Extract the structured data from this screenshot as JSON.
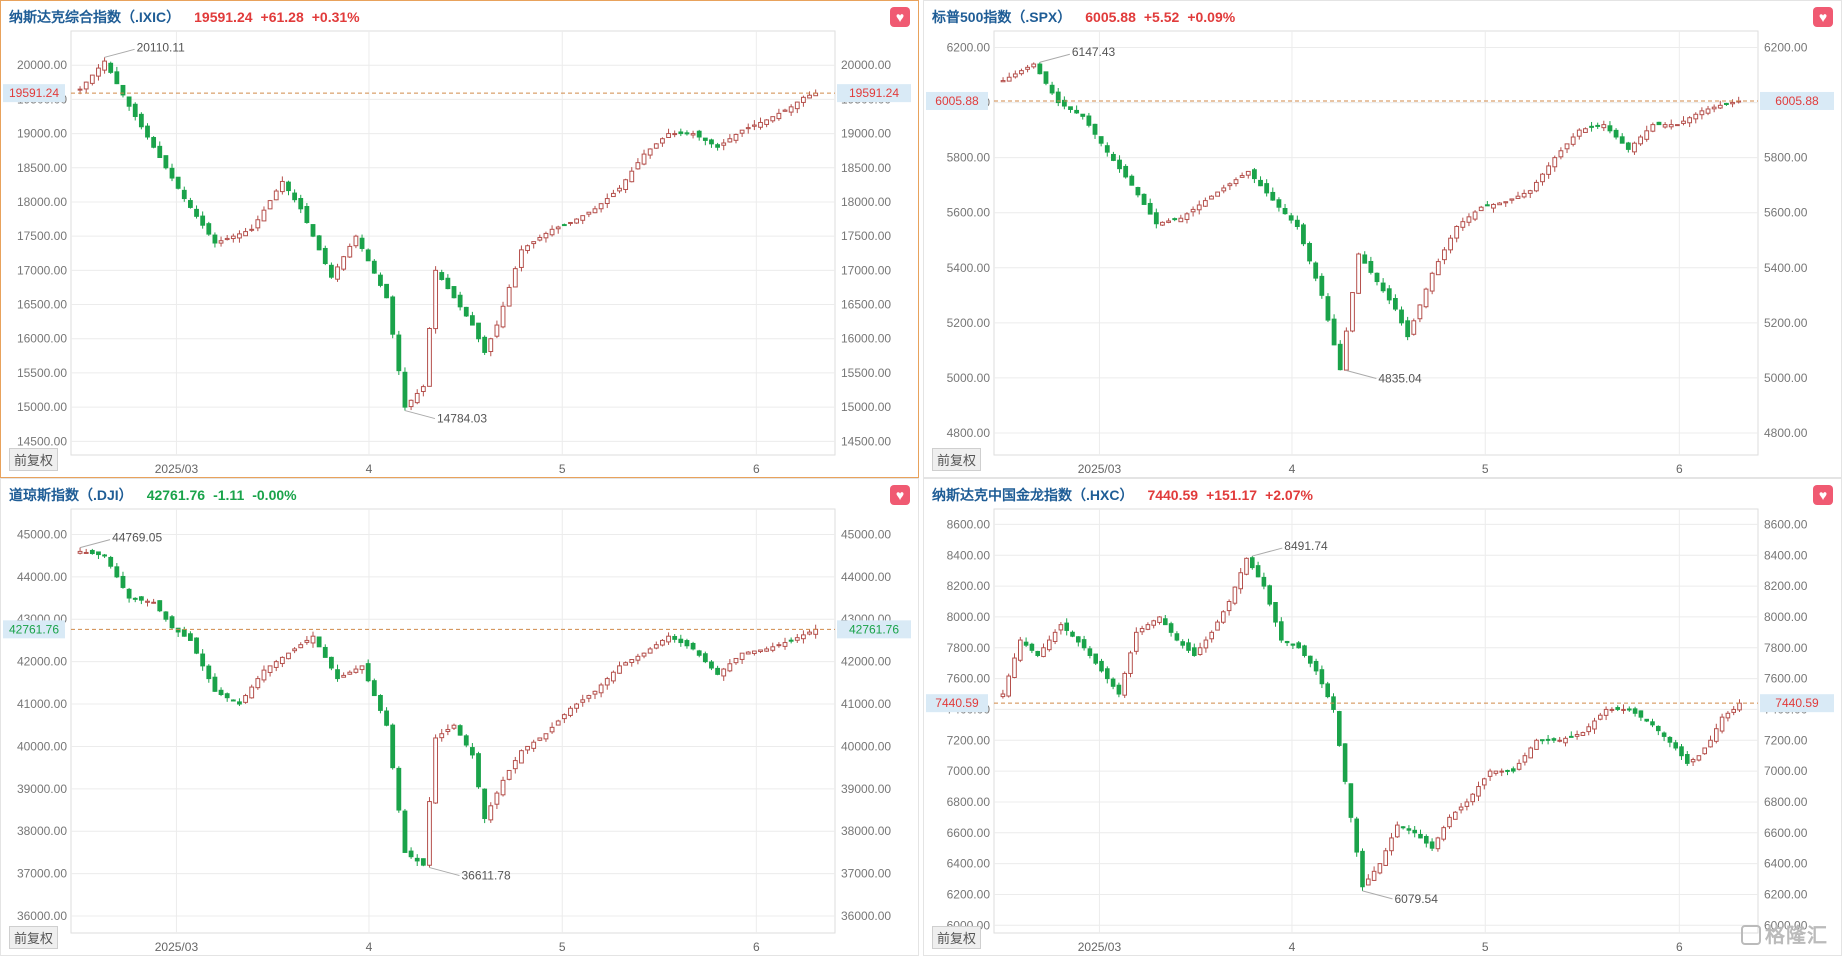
{
  "adjust_label": "前复权",
  "watermark": "格隆汇",
  "favorite_icon": "heart-icon",
  "colors": {
    "up": "#e13b3b",
    "down": "#1aa34a",
    "title": "#1f5d96",
    "refline": "#d08a4a",
    "grid": "#ececec"
  },
  "panels": [
    {
      "name": "纳斯达克综合指数（.IXIC）",
      "value": "19591.24",
      "change": "+61.28",
      "pct": "+0.31%",
      "dir": "up",
      "selected": true
    },
    {
      "name": "标普500指数（.SPX）",
      "value": "6005.88",
      "change": "+5.52",
      "pct": "+0.09%",
      "dir": "up",
      "selected": false
    },
    {
      "name": "道琼斯指数（.DJI）",
      "value": "42761.76",
      "change": "-1.11",
      "pct": "-0.00%",
      "dir": "down",
      "selected": false
    },
    {
      "name": "纳斯达克中国金龙指数（.HXC）",
      "value": "7440.59",
      "change": "+151.17",
      "pct": "+2.07%",
      "dir": "up",
      "selected": false
    }
  ],
  "chart_data": [
    {
      "type": "candlestick",
      "xlabels": [
        "2025/03",
        "4",
        "5",
        "6"
      ],
      "ylim": [
        14300,
        20500
      ],
      "yticks": [
        "20000.00",
        "19500.00",
        "19000.00",
        "18500.00",
        "18000.00",
        "17500.00",
        "17000.00",
        "16500.00",
        "16000.00",
        "15500.00",
        "15000.00",
        "14500.00"
      ],
      "last": 19591.24,
      "last_label": "19591.24",
      "hi_label": "20110.11",
      "lo_label": "14784.03",
      "anchors": [
        [
          0,
          19650
        ],
        [
          4,
          20060
        ],
        [
          8,
          19400
        ],
        [
          13,
          18650
        ],
        [
          17,
          18050
        ],
        [
          22,
          17400
        ],
        [
          28,
          17600
        ],
        [
          33,
          18300
        ],
        [
          36,
          17900
        ],
        [
          41,
          16900
        ],
        [
          45,
          17500
        ],
        [
          50,
          16600
        ],
        [
          53,
          15000
        ],
        [
          56,
          15300
        ],
        [
          58,
          17000
        ],
        [
          61,
          16600
        ],
        [
          64,
          16200
        ],
        [
          66,
          15800
        ],
        [
          68,
          16200
        ],
        [
          72,
          17300
        ],
        [
          77,
          17600
        ],
        [
          80,
          17700
        ],
        [
          84,
          17900
        ],
        [
          88,
          18200
        ],
        [
          92,
          18700
        ],
        [
          96,
          19000
        ],
        [
          100,
          19000
        ],
        [
          104,
          18800
        ],
        [
          108,
          19050
        ],
        [
          112,
          19200
        ],
        [
          116,
          19391
        ],
        [
          118,
          19530
        ],
        [
          120,
          19591.24
        ]
      ]
    },
    {
      "type": "candlestick",
      "xlabels": [
        "2025/03",
        "4",
        "5",
        "6"
      ],
      "ylim": [
        4720,
        6260
      ],
      "yticks": [
        "6200.00",
        "6000.00",
        "5800.00",
        "5600.00",
        "5400.00",
        "5200.00",
        "5000.00",
        "4800.00"
      ],
      "last": 6005.88,
      "last_label": "6005.88",
      "hi_label": "6147.43",
      "lo_label": "4835.04",
      "anchors": [
        [
          0,
          6080
        ],
        [
          5,
          6140
        ],
        [
          9,
          6000
        ],
        [
          13,
          5950
        ],
        [
          17,
          5820
        ],
        [
          21,
          5700
        ],
        [
          25,
          5560
        ],
        [
          29,
          5580
        ],
        [
          34,
          5660
        ],
        [
          40,
          5750
        ],
        [
          45,
          5620
        ],
        [
          48,
          5550
        ],
        [
          52,
          5300
        ],
        [
          55,
          5030
        ],
        [
          58,
          5450
        ],
        [
          61,
          5350
        ],
        [
          64,
          5250
        ],
        [
          66,
          5150
        ],
        [
          70,
          5380
        ],
        [
          74,
          5550
        ],
        [
          78,
          5620
        ],
        [
          82,
          5640
        ],
        [
          86,
          5680
        ],
        [
          90,
          5800
        ],
        [
          94,
          5900
        ],
        [
          98,
          5920
        ],
        [
          102,
          5830
        ],
        [
          106,
          5920
        ],
        [
          110,
          5920
        ],
        [
          114,
          5970
        ],
        [
          117,
          5990
        ],
        [
          120,
          6005.88
        ]
      ]
    },
    {
      "type": "candlestick",
      "xlabels": [
        "2025/03",
        "4",
        "5",
        "6"
      ],
      "ylim": [
        35600,
        45600
      ],
      "yticks": [
        "45000.00",
        "44000.00",
        "43000.00",
        "42000.00",
        "41000.00",
        "40000.00",
        "39000.00",
        "38000.00",
        "37000.00",
        "36000.00"
      ],
      "last": 42761.76,
      "last_label": "42761.76",
      "hi_label": "44769.05",
      "lo_label": "36611.78",
      "anchors": [
        [
          0,
          44600
        ],
        [
          4,
          44500
        ],
        [
          8,
          43500
        ],
        [
          12,
          43400
        ],
        [
          15,
          42800
        ],
        [
          18,
          42500
        ],
        [
          22,
          41300
        ],
        [
          26,
          41000
        ],
        [
          30,
          41800
        ],
        [
          35,
          42300
        ],
        [
          38,
          42600
        ],
        [
          42,
          41600
        ],
        [
          46,
          41900
        ],
        [
          50,
          40500
        ],
        [
          53,
          37500
        ],
        [
          56,
          37200
        ],
        [
          58,
          40200
        ],
        [
          61,
          40500
        ],
        [
          64,
          39800
        ],
        [
          66,
          38300
        ],
        [
          69,
          39200
        ],
        [
          72,
          39900
        ],
        [
          76,
          40300
        ],
        [
          80,
          40900
        ],
        [
          84,
          41300
        ],
        [
          88,
          41900
        ],
        [
          92,
          42200
        ],
        [
          96,
          42600
        ],
        [
          100,
          42300
        ],
        [
          104,
          41700
        ],
        [
          108,
          42200
        ],
        [
          112,
          42300
        ],
        [
          116,
          42500
        ],
        [
          120,
          42761.76
        ]
      ]
    },
    {
      "type": "candlestick",
      "xlabels": [
        "2025/03",
        "4",
        "5",
        "6"
      ],
      "ylim": [
        5950,
        8700
      ],
      "yticks": [
        "8600.00",
        "8400.00",
        "8200.00",
        "8000.00",
        "7800.00",
        "7600.00",
        "7400.00",
        "7200.00",
        "7000.00",
        "6800.00",
        "6600.00",
        "6400.00",
        "6200.00",
        "6000.00"
      ],
      "last": 7440.59,
      "last_label": "7440.59",
      "hi_label": "8491.74",
      "lo_label": "6079.54",
      "anchors": [
        [
          0,
          7500
        ],
        [
          3,
          7850
        ],
        [
          6,
          7750
        ],
        [
          10,
          7950
        ],
        [
          14,
          7800
        ],
        [
          17,
          7650
        ],
        [
          20,
          7500
        ],
        [
          23,
          7900
        ],
        [
          27,
          8000
        ],
        [
          30,
          7850
        ],
        [
          33,
          7750
        ],
        [
          36,
          7900
        ],
        [
          39,
          8100
        ],
        [
          42,
          8380
        ],
        [
          45,
          8200
        ],
        [
          48,
          7850
        ],
        [
          51,
          7800
        ],
        [
          54,
          7650
        ],
        [
          57,
          7400
        ],
        [
          60,
          6700
        ],
        [
          62,
          6250
        ],
        [
          65,
          6400
        ],
        [
          68,
          6650
        ],
        [
          71,
          6600
        ],
        [
          74,
          6500
        ],
        [
          77,
          6700
        ],
        [
          80,
          6800
        ],
        [
          84,
          7000
        ],
        [
          88,
          7000
        ],
        [
          92,
          7200
        ],
        [
          96,
          7200
        ],
        [
          100,
          7250
        ],
        [
          104,
          7400
        ],
        [
          108,
          7400
        ],
        [
          112,
          7300
        ],
        [
          116,
          7150
        ],
        [
          118,
          7050
        ],
        [
          120,
          7100
        ],
        [
          122,
          7200
        ],
        [
          124,
          7350
        ],
        [
          126,
          7400
        ],
        [
          127,
          7440.59
        ]
      ]
    }
  ]
}
